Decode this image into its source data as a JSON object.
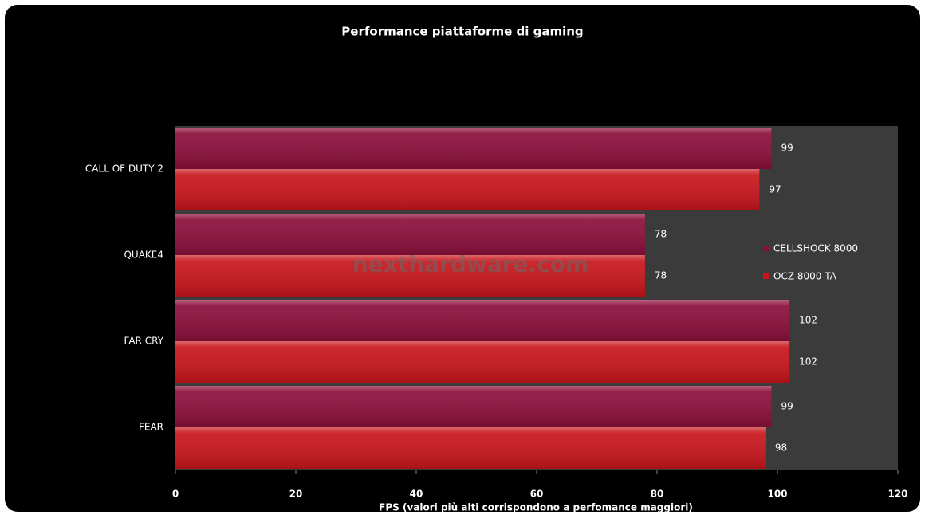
{
  "chart_data": {
    "type": "hbar",
    "title": "Performance piattaforme di gaming",
    "x_label": "FPS (valori più alti corrispondono a perfomance maggiori)",
    "watermark": "nexthardware.com",
    "categories": [
      "CALL OF DUTY 2",
      "QUAKE4",
      "FAR CRY",
      "FEAR"
    ],
    "series": [
      {
        "name": "CELLSHOCK 8000",
        "color": "#8b0e3a",
        "values": [
          99,
          78,
          102,
          99
        ]
      },
      {
        "name": "OCZ 8000 TA",
        "color": "#c8151b",
        "values": [
          97,
          78,
          102,
          98
        ]
      }
    ],
    "xlim": [
      0,
      120
    ],
    "xticks": [
      0,
      20,
      40,
      60,
      80,
      100,
      120
    ],
    "legend": "right"
  }
}
